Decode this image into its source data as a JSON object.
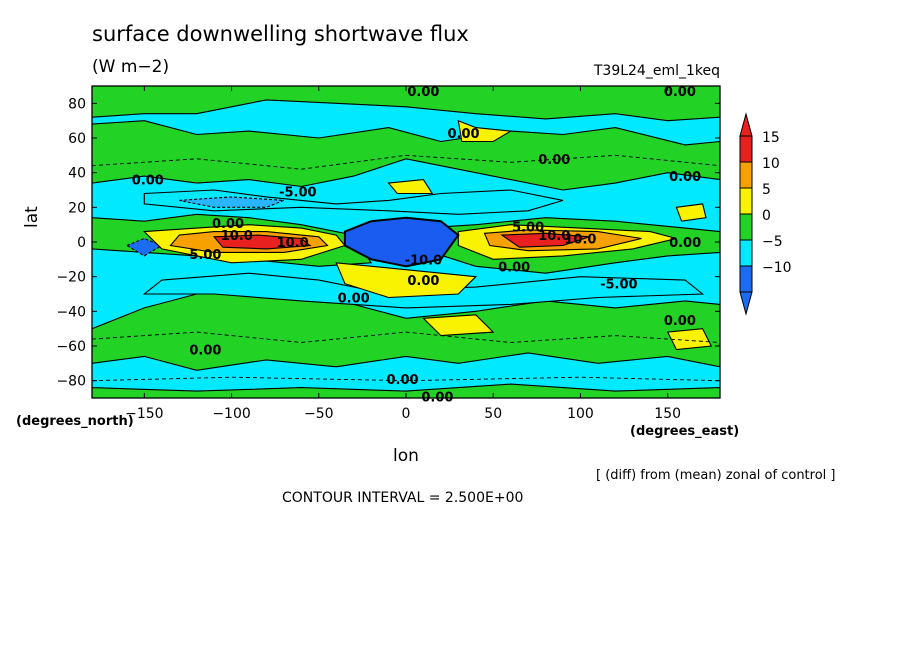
{
  "chart_data": {
    "type": "heatmap",
    "title": "surface downwelling shortwave flux",
    "units": "(W m−2)",
    "run_id": "T39L24_eml_1keq",
    "xlabel": "lon",
    "ylabel": "lat",
    "x_unit_label": "(degrees_east)",
    "y_unit_label": "(degrees_north)",
    "xlim": [
      -180,
      180
    ],
    "ylim": [
      -90,
      90
    ],
    "x_ticks": [
      -150,
      -100,
      -50,
      0,
      50,
      100,
      150
    ],
    "x_tick_labels": [
      "−150",
      "−100",
      "−50",
      "0",
      "50",
      "100",
      "150"
    ],
    "y_ticks": [
      -80,
      -60,
      -40,
      -20,
      0,
      20,
      40,
      60,
      80
    ],
    "y_tick_labels": [
      "−80",
      "−60",
      "−40",
      "−20",
      "0",
      "20",
      "40",
      "60",
      "80"
    ],
    "colorbar": {
      "levels": [
        {
          "label": "15",
          "color": "#e8201f"
        },
        {
          "label": "10",
          "color": "#f7a100"
        },
        {
          "label": "5",
          "color": "#f9f200"
        },
        {
          "label": "0",
          "color": "#22d326"
        },
        {
          "label": "−5",
          "color": "#00e9ff"
        },
        {
          "label": "−10",
          "color": "#1b6cf2"
        }
      ],
      "top_arrow_color": "#e8201f",
      "bottom_arrow_color": "#1b6cf2"
    },
    "contour_labels": [
      {
        "lon": 10,
        "lat": 87,
        "text": "0.00"
      },
      {
        "lon": 157,
        "lat": 87,
        "text": "0.00"
      },
      {
        "lon": 33,
        "lat": 63,
        "text": "0.00"
      },
      {
        "lon": 85,
        "lat": 48,
        "text": "0.00"
      },
      {
        "lon": 160,
        "lat": 38,
        "text": "0.00"
      },
      {
        "lon": -148,
        "lat": 36,
        "text": "0.00"
      },
      {
        "lon": -62,
        "lat": 29,
        "text": "-5.00"
      },
      {
        "lon": -102,
        "lat": 11,
        "text": "0.00"
      },
      {
        "lon": -97,
        "lat": 4,
        "text": "10.0"
      },
      {
        "lon": -65,
        "lat": 0,
        "text": "10.0"
      },
      {
        "lon": 70,
        "lat": 9,
        "text": "5.00"
      },
      {
        "lon": 100,
        "lat": 2,
        "text": "10.0"
      },
      {
        "lon": 85,
        "lat": 4,
        "text": "10.0"
      },
      {
        "lon": 160,
        "lat": 0,
        "text": "0.00"
      },
      {
        "lon": -115,
        "lat": -7,
        "text": "5.00"
      },
      {
        "lon": 10,
        "lat": -10,
        "text": "-10.0"
      },
      {
        "lon": 62,
        "lat": -14,
        "text": "0.00"
      },
      {
        "lon": 10,
        "lat": -22,
        "text": "0.00"
      },
      {
        "lon": 122,
        "lat": -24,
        "text": "-5.00"
      },
      {
        "lon": -30,
        "lat": -32,
        "text": "0.00"
      },
      {
        "lon": 157,
        "lat": -45,
        "text": "0.00"
      },
      {
        "lon": -115,
        "lat": -62,
        "text": "0.00"
      },
      {
        "lon": -2,
        "lat": -79,
        "text": "0.00"
      },
      {
        "lon": 18,
        "lat": -89,
        "text": "0.00"
      }
    ]
  },
  "annotations": {
    "source_note": "[ (diff) from (mean) zonal of control ]",
    "contour_interval": "CONTOUR INTERVAL = 2.500E+00"
  }
}
